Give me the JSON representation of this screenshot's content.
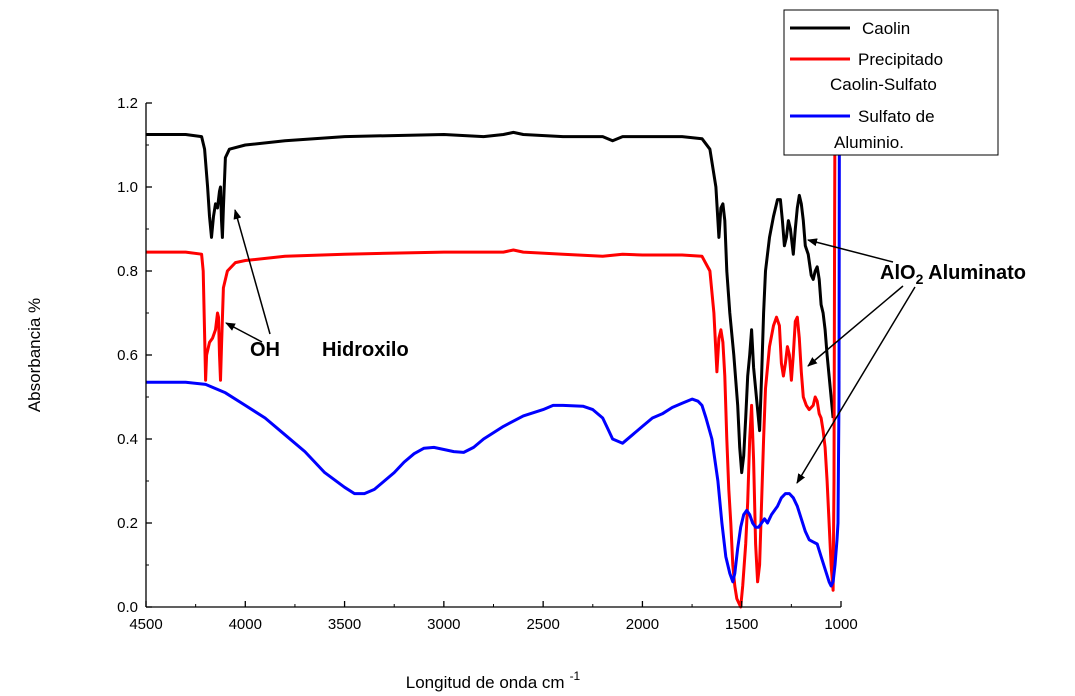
{
  "chart_data": {
    "type": "line",
    "xlabel": "Longitud de onda cm",
    "xlabel_sup": "-1",
    "ylabel": "Absorbancia %",
    "xlim": [
      4500,
      1000
    ],
    "ylim": [
      0.0,
      1.2
    ],
    "x_reversed": true,
    "xticks": [
      4500,
      4000,
      3500,
      3000,
      2500,
      2000,
      1500,
      1000
    ],
    "xtick_labels": [
      "4500",
      "4000",
      "3500",
      "3000",
      "2500",
      "2000",
      "1500",
      "1000"
    ],
    "yticks": [
      0.0,
      0.2,
      0.4,
      0.6,
      0.8,
      1.0,
      1.2
    ],
    "ytick_labels": [
      "0.0",
      "0.2",
      "0.4",
      "0.6",
      "0.8",
      "1.0",
      "1.2"
    ],
    "grid": false,
    "legend_position": "top-right",
    "series": [
      {
        "name": "Caolin",
        "color": "#000000",
        "points": [
          [
            4500,
            1.125
          ],
          [
            4300,
            1.125
          ],
          [
            4220,
            1.12
          ],
          [
            4205,
            1.09
          ],
          [
            4190,
            1.0
          ],
          [
            4180,
            0.93
          ],
          [
            4170,
            0.88
          ],
          [
            4160,
            0.93
          ],
          [
            4150,
            0.96
          ],
          [
            4140,
            0.95
          ],
          [
            4130,
            0.99
          ],
          [
            4125,
            1.0
          ],
          [
            4120,
            0.92
          ],
          [
            4115,
            0.88
          ],
          [
            4110,
            0.95
          ],
          [
            4100,
            1.07
          ],
          [
            4080,
            1.09
          ],
          [
            4000,
            1.1
          ],
          [
            3800,
            1.11
          ],
          [
            3500,
            1.12
          ],
          [
            3000,
            1.125
          ],
          [
            2800,
            1.12
          ],
          [
            2700,
            1.125
          ],
          [
            2650,
            1.13
          ],
          [
            2600,
            1.125
          ],
          [
            2400,
            1.12
          ],
          [
            2200,
            1.12
          ],
          [
            2150,
            1.11
          ],
          [
            2100,
            1.12
          ],
          [
            2000,
            1.12
          ],
          [
            1800,
            1.12
          ],
          [
            1700,
            1.115
          ],
          [
            1660,
            1.09
          ],
          [
            1630,
            1.0
          ],
          [
            1615,
            0.88
          ],
          [
            1605,
            0.95
          ],
          [
            1595,
            0.96
          ],
          [
            1585,
            0.92
          ],
          [
            1575,
            0.8
          ],
          [
            1560,
            0.7
          ],
          [
            1540,
            0.6
          ],
          [
            1520,
            0.48
          ],
          [
            1510,
            0.38
          ],
          [
            1500,
            0.32
          ],
          [
            1490,
            0.36
          ],
          [
            1480,
            0.45
          ],
          [
            1470,
            0.55
          ],
          [
            1460,
            0.6
          ],
          [
            1450,
            0.66
          ],
          [
            1440,
            0.57
          ],
          [
            1430,
            0.52
          ],
          [
            1420,
            0.47
          ],
          [
            1410,
            0.42
          ],
          [
            1400,
            0.55
          ],
          [
            1390,
            0.7
          ],
          [
            1380,
            0.8
          ],
          [
            1360,
            0.88
          ],
          [
            1340,
            0.93
          ],
          [
            1320,
            0.97
          ],
          [
            1305,
            0.97
          ],
          [
            1295,
            0.92
          ],
          [
            1285,
            0.86
          ],
          [
            1275,
            0.88
          ],
          [
            1265,
            0.92
          ],
          [
            1255,
            0.9
          ],
          [
            1240,
            0.84
          ],
          [
            1230,
            0.9
          ],
          [
            1220,
            0.95
          ],
          [
            1210,
            0.98
          ],
          [
            1200,
            0.96
          ],
          [
            1190,
            0.92
          ],
          [
            1180,
            0.86
          ],
          [
            1165,
            0.84
          ],
          [
            1150,
            0.79
          ],
          [
            1140,
            0.78
          ],
          [
            1130,
            0.8
          ],
          [
            1120,
            0.81
          ],
          [
            1110,
            0.78
          ],
          [
            1100,
            0.72
          ],
          [
            1090,
            0.7
          ],
          [
            1080,
            0.66
          ],
          [
            1070,
            0.6
          ],
          [
            1060,
            0.55
          ],
          [
            1050,
            0.5
          ],
          [
            1040,
            0.45
          ]
        ]
      },
      {
        "name": "Precipitado Caolin-Sulfato",
        "color": "#ff0000",
        "points": [
          [
            4500,
            0.845
          ],
          [
            4300,
            0.845
          ],
          [
            4220,
            0.84
          ],
          [
            4212,
            0.8
          ],
          [
            4205,
            0.65
          ],
          [
            4200,
            0.54
          ],
          [
            4195,
            0.6
          ],
          [
            4180,
            0.63
          ],
          [
            4165,
            0.64
          ],
          [
            4150,
            0.66
          ],
          [
            4140,
            0.7
          ],
          [
            4135,
            0.69
          ],
          [
            4130,
            0.6
          ],
          [
            4125,
            0.54
          ],
          [
            4120,
            0.62
          ],
          [
            4110,
            0.76
          ],
          [
            4090,
            0.8
          ],
          [
            4050,
            0.82
          ],
          [
            4000,
            0.825
          ],
          [
            3800,
            0.835
          ],
          [
            3500,
            0.84
          ],
          [
            3000,
            0.845
          ],
          [
            2700,
            0.845
          ],
          [
            2650,
            0.85
          ],
          [
            2600,
            0.845
          ],
          [
            2400,
            0.84
          ],
          [
            2200,
            0.835
          ],
          [
            2100,
            0.84
          ],
          [
            2000,
            0.838
          ],
          [
            1800,
            0.838
          ],
          [
            1700,
            0.835
          ],
          [
            1660,
            0.8
          ],
          [
            1640,
            0.7
          ],
          [
            1625,
            0.56
          ],
          [
            1615,
            0.64
          ],
          [
            1605,
            0.66
          ],
          [
            1595,
            0.63
          ],
          [
            1585,
            0.55
          ],
          [
            1575,
            0.4
          ],
          [
            1565,
            0.28
          ],
          [
            1555,
            0.2
          ],
          [
            1545,
            0.1
          ],
          [
            1535,
            0.05
          ],
          [
            1525,
            0.02
          ],
          [
            1515,
            0.01
          ],
          [
            1505,
            0.0
          ],
          [
            1495,
            0.05
          ],
          [
            1480,
            0.15
          ],
          [
            1470,
            0.25
          ],
          [
            1460,
            0.4
          ],
          [
            1450,
            0.48
          ],
          [
            1440,
            0.35
          ],
          [
            1430,
            0.15
          ],
          [
            1420,
            0.06
          ],
          [
            1410,
            0.1
          ],
          [
            1400,
            0.25
          ],
          [
            1390,
            0.4
          ],
          [
            1380,
            0.52
          ],
          [
            1360,
            0.62
          ],
          [
            1340,
            0.67
          ],
          [
            1325,
            0.69
          ],
          [
            1310,
            0.67
          ],
          [
            1300,
            0.58
          ],
          [
            1290,
            0.55
          ],
          [
            1280,
            0.58
          ],
          [
            1270,
            0.62
          ],
          [
            1260,
            0.6
          ],
          [
            1250,
            0.54
          ],
          [
            1240,
            0.6
          ],
          [
            1230,
            0.68
          ],
          [
            1220,
            0.69
          ],
          [
            1210,
            0.64
          ],
          [
            1200,
            0.56
          ],
          [
            1190,
            0.5
          ],
          [
            1175,
            0.48
          ],
          [
            1160,
            0.47
          ],
          [
            1140,
            0.48
          ],
          [
            1130,
            0.5
          ],
          [
            1120,
            0.49
          ],
          [
            1110,
            0.46
          ],
          [
            1100,
            0.45
          ],
          [
            1090,
            0.42
          ],
          [
            1080,
            0.38
          ],
          [
            1070,
            0.3
          ],
          [
            1060,
            0.2
          ],
          [
            1050,
            0.1
          ],
          [
            1040,
            0.04
          ],
          [
            1035,
            0.3
          ],
          [
            1032,
            0.9
          ],
          [
            1030,
            1.2
          ]
        ]
      },
      {
        "name": "Sulfato de Aluminio.",
        "color": "#0000ff",
        "points": [
          [
            4500,
            0.535
          ],
          [
            4300,
            0.535
          ],
          [
            4200,
            0.53
          ],
          [
            4100,
            0.51
          ],
          [
            4000,
            0.48
          ],
          [
            3900,
            0.45
          ],
          [
            3800,
            0.41
          ],
          [
            3700,
            0.37
          ],
          [
            3600,
            0.32
          ],
          [
            3500,
            0.285
          ],
          [
            3450,
            0.27
          ],
          [
            3400,
            0.27
          ],
          [
            3350,
            0.28
          ],
          [
            3300,
            0.3
          ],
          [
            3250,
            0.32
          ],
          [
            3200,
            0.345
          ],
          [
            3150,
            0.365
          ],
          [
            3100,
            0.378
          ],
          [
            3050,
            0.38
          ],
          [
            3000,
            0.375
          ],
          [
            2950,
            0.37
          ],
          [
            2900,
            0.368
          ],
          [
            2850,
            0.38
          ],
          [
            2800,
            0.4
          ],
          [
            2700,
            0.43
          ],
          [
            2600,
            0.455
          ],
          [
            2500,
            0.47
          ],
          [
            2450,
            0.48
          ],
          [
            2400,
            0.48
          ],
          [
            2300,
            0.478
          ],
          [
            2250,
            0.47
          ],
          [
            2200,
            0.45
          ],
          [
            2170,
            0.42
          ],
          [
            2150,
            0.4
          ],
          [
            2100,
            0.39
          ],
          [
            2050,
            0.41
          ],
          [
            2000,
            0.43
          ],
          [
            1950,
            0.45
          ],
          [
            1900,
            0.46
          ],
          [
            1850,
            0.475
          ],
          [
            1800,
            0.485
          ],
          [
            1750,
            0.495
          ],
          [
            1720,
            0.49
          ],
          [
            1700,
            0.48
          ],
          [
            1680,
            0.45
          ],
          [
            1650,
            0.4
          ],
          [
            1620,
            0.3
          ],
          [
            1600,
            0.2
          ],
          [
            1580,
            0.12
          ],
          [
            1560,
            0.08
          ],
          [
            1545,
            0.06
          ],
          [
            1535,
            0.08
          ],
          [
            1520,
            0.14
          ],
          [
            1505,
            0.19
          ],
          [
            1490,
            0.22
          ],
          [
            1475,
            0.23
          ],
          [
            1460,
            0.22
          ],
          [
            1445,
            0.2
          ],
          [
            1430,
            0.19
          ],
          [
            1415,
            0.19
          ],
          [
            1400,
            0.2
          ],
          [
            1385,
            0.21
          ],
          [
            1370,
            0.2
          ],
          [
            1350,
            0.22
          ],
          [
            1320,
            0.24
          ],
          [
            1300,
            0.26
          ],
          [
            1280,
            0.27
          ],
          [
            1260,
            0.27
          ],
          [
            1240,
            0.26
          ],
          [
            1220,
            0.24
          ],
          [
            1200,
            0.21
          ],
          [
            1180,
            0.18
          ],
          [
            1160,
            0.16
          ],
          [
            1140,
            0.155
          ],
          [
            1120,
            0.15
          ],
          [
            1100,
            0.12
          ],
          [
            1080,
            0.09
          ],
          [
            1060,
            0.06
          ],
          [
            1050,
            0.05
          ],
          [
            1040,
            0.06
          ],
          [
            1030,
            0.1
          ],
          [
            1020,
            0.16
          ],
          [
            1015,
            0.2
          ],
          [
            1010,
            0.5
          ],
          [
            1008,
            1.2
          ]
        ]
      }
    ],
    "annotations": {
      "oh_label": "OH",
      "hidroxilo_label": "Hidroxilo",
      "alo2_prefix": "AlO",
      "alo2_sub": "2",
      "alo2_suffix": " Aluminato"
    }
  },
  "legend": {
    "items": [
      {
        "line1": "Caolin",
        "line2": "",
        "color": "#000000"
      },
      {
        "line1": "Precipitado",
        "line2": "Caolin-Sulfato",
        "color": "#ff0000"
      },
      {
        "line1": "Sulfato de",
        "line2": "Aluminio.",
        "color": "#0000ff"
      }
    ]
  }
}
